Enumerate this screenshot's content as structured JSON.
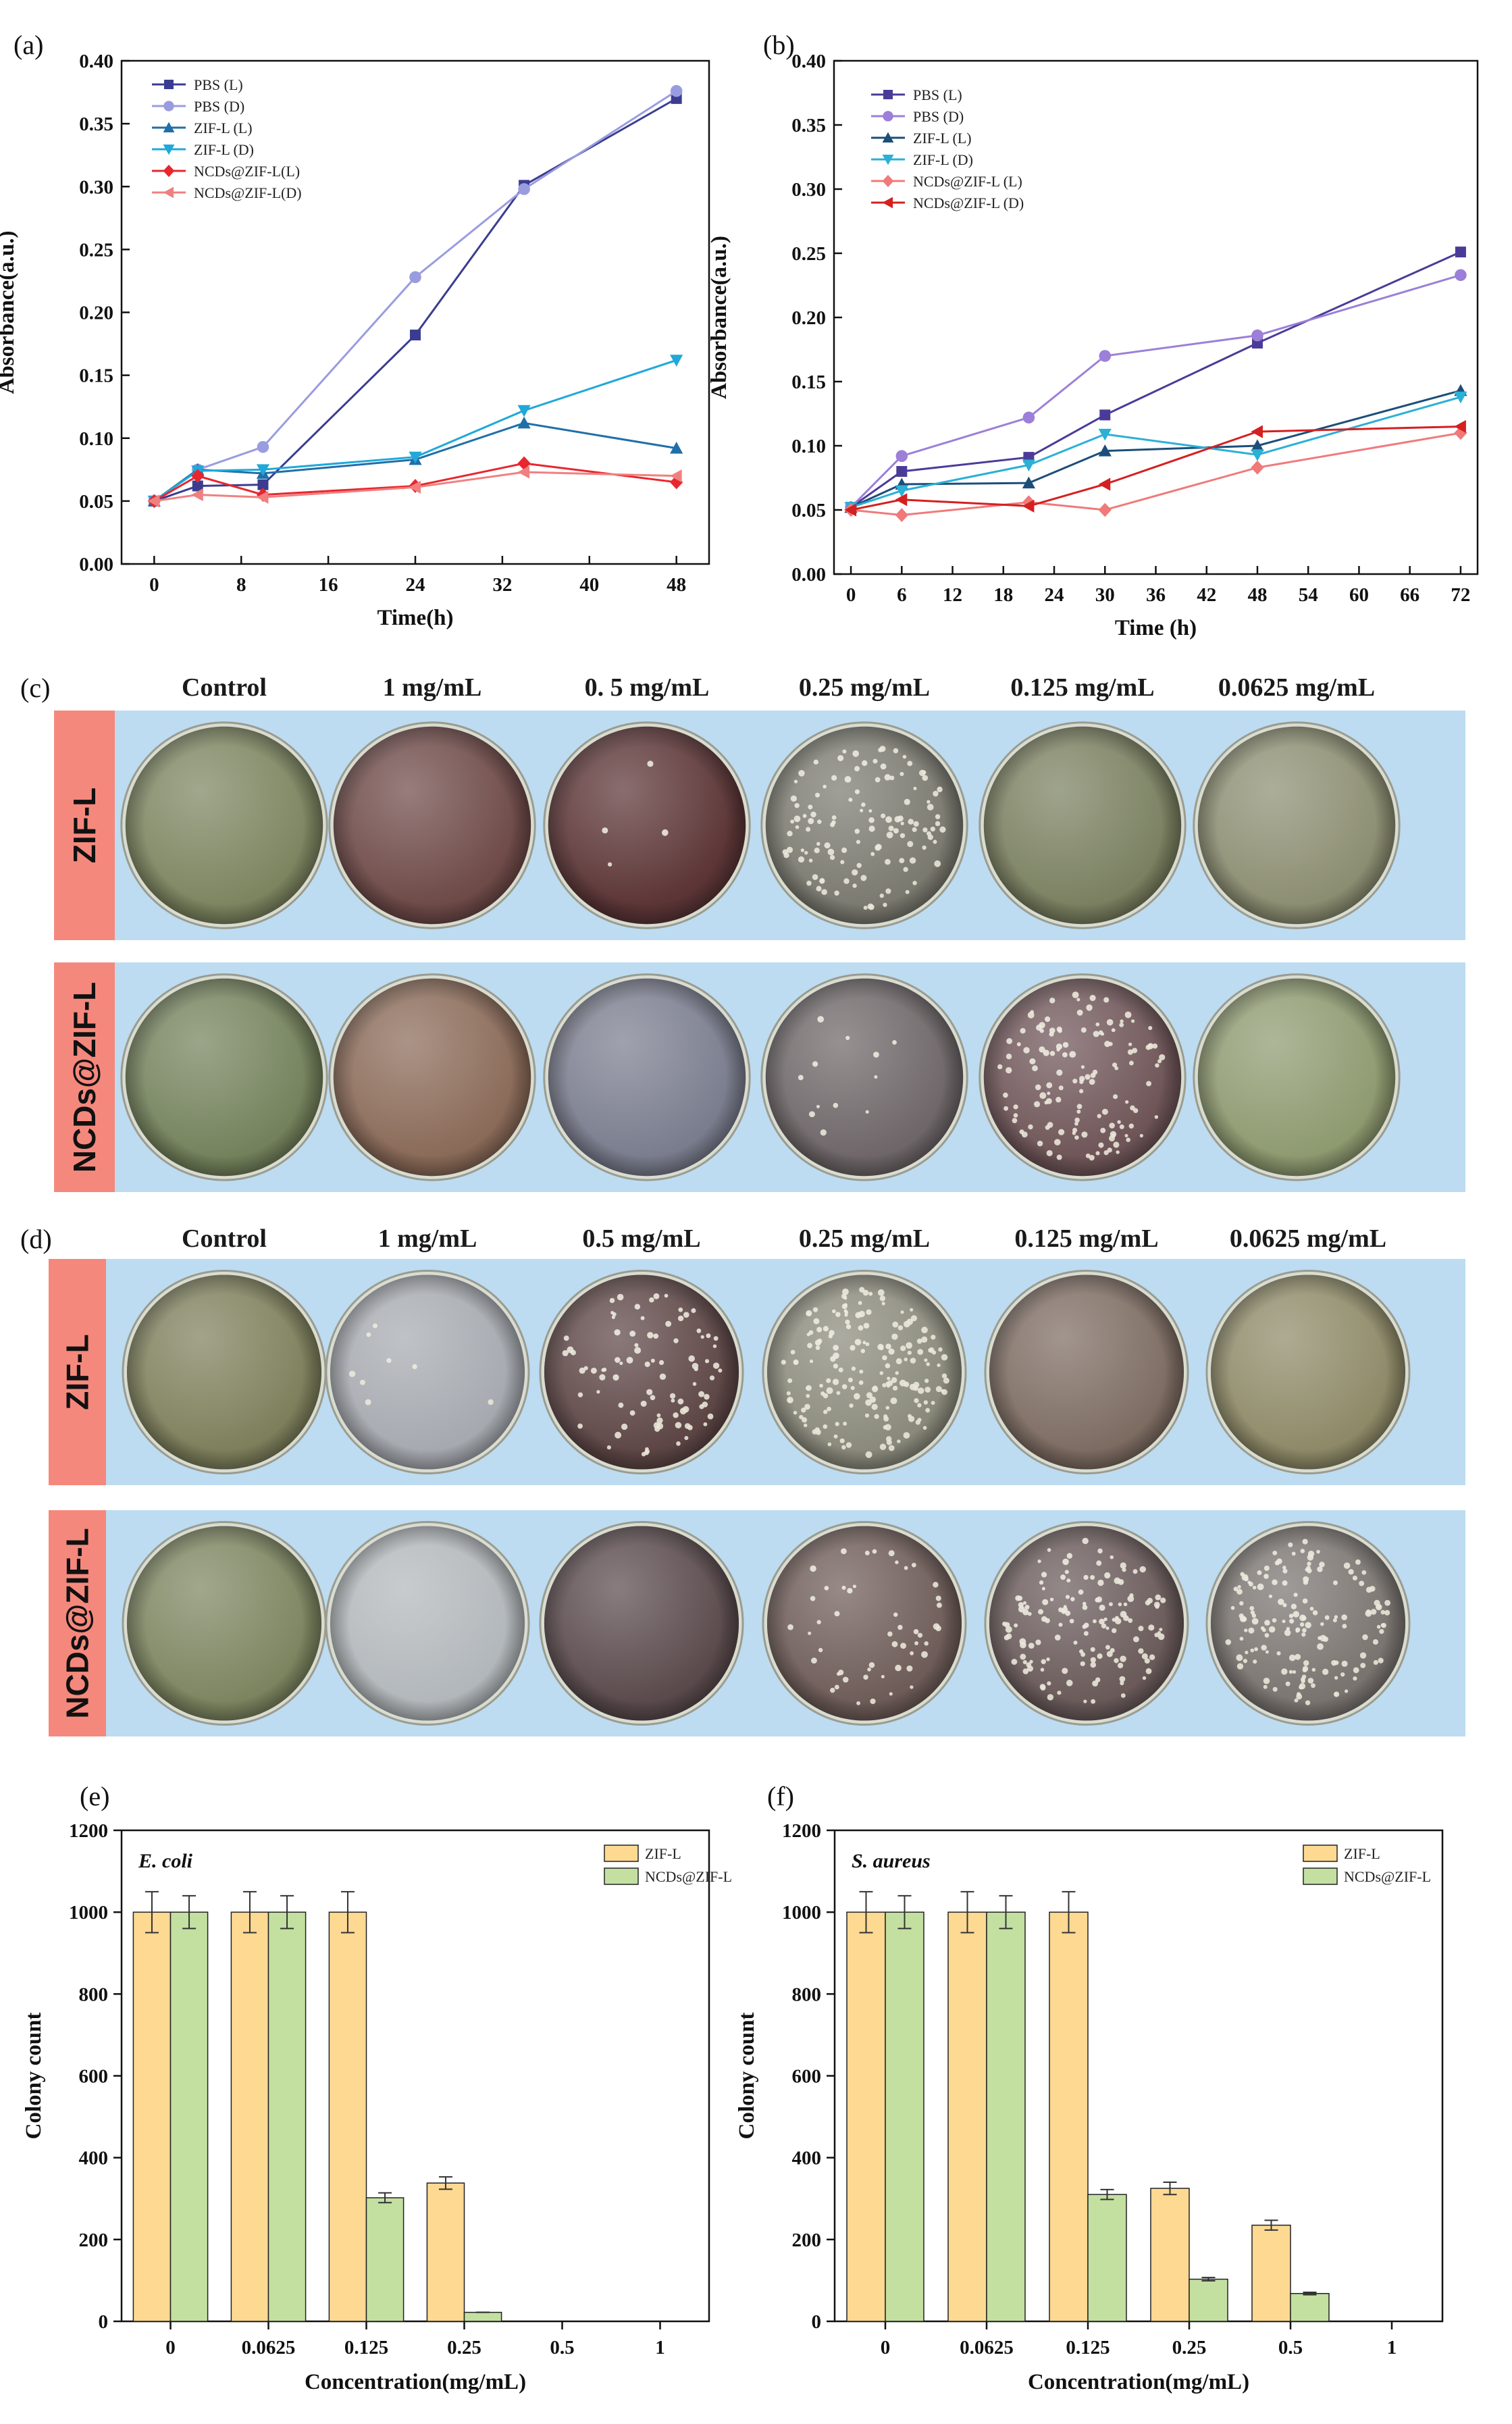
{
  "panel_labels": {
    "a": "(a)",
    "b": "(b)",
    "c": "(c)",
    "d": "(d)",
    "e": "(e)",
    "f": "(f)"
  },
  "chart_data": [
    {
      "id": "a",
      "type": "line",
      "xlabel": "Time(h)",
      "ylabel": "Absorbance(a.u.)",
      "xlim": [
        -3,
        51
      ],
      "ylim": [
        0,
        0.4
      ],
      "xticks": [
        0,
        8,
        16,
        24,
        32,
        40,
        48
      ],
      "yticks": [
        0.0,
        0.05,
        0.1,
        0.15,
        0.2,
        0.25,
        0.3,
        0.35,
        0.4
      ],
      "legend_position": "top-left",
      "series": [
        {
          "name": "PBS (L)",
          "color": "#3a3d8f",
          "marker": "square",
          "x": [
            0,
            4,
            10,
            24,
            34,
            48
          ],
          "y": [
            0.05,
            0.062,
            0.063,
            0.182,
            0.301,
            0.37
          ]
        },
        {
          "name": "PBS (D)",
          "color": "#9a9ce0",
          "marker": "circle",
          "x": [
            0,
            4,
            10,
            24,
            34,
            48
          ],
          "y": [
            0.05,
            0.075,
            0.093,
            0.228,
            0.298,
            0.376
          ]
        },
        {
          "name": "ZIF-L (L)",
          "color": "#1f6fa8",
          "marker": "triangle-up",
          "x": [
            0,
            4,
            10,
            24,
            34,
            48
          ],
          "y": [
            0.05,
            0.075,
            0.072,
            0.083,
            0.112,
            0.092
          ]
        },
        {
          "name": "ZIF-L (D)",
          "color": "#20a8d8",
          "marker": "triangle-down",
          "x": [
            0,
            4,
            10,
            24,
            34,
            48
          ],
          "y": [
            0.05,
            0.074,
            0.075,
            0.085,
            0.122,
            0.162
          ]
        },
        {
          "name": "NCDs@ZIF-L(L)",
          "color": "#e8262e",
          "marker": "diamond",
          "x": [
            0,
            4,
            10,
            24,
            34,
            48
          ],
          "y": [
            0.05,
            0.07,
            0.055,
            0.062,
            0.08,
            0.065
          ]
        },
        {
          "name": "NCDs@ZIF-L(D)",
          "color": "#f08080",
          "marker": "triangle-left",
          "x": [
            0,
            4,
            10,
            24,
            34,
            48
          ],
          "y": [
            0.05,
            0.055,
            0.053,
            0.061,
            0.073,
            0.07
          ]
        }
      ]
    },
    {
      "id": "b",
      "type": "line",
      "xlabel": "Time (h)",
      "ylabel": "Absorbance(a.u.)",
      "xlim": [
        -2,
        74
      ],
      "ylim": [
        0,
        0.4
      ],
      "xticks": [
        0,
        6,
        12,
        18,
        24,
        30,
        36,
        42,
        48,
        54,
        60,
        66,
        72
      ],
      "yticks": [
        0.0,
        0.05,
        0.1,
        0.15,
        0.2,
        0.25,
        0.3,
        0.35,
        0.4
      ],
      "legend_position": "top-left",
      "series": [
        {
          "name": "PBS (L)",
          "color": "#4b3b99",
          "marker": "square",
          "x": [
            0,
            6,
            21,
            30,
            48,
            72
          ],
          "y": [
            0.052,
            0.08,
            0.091,
            0.124,
            0.18,
            0.251
          ]
        },
        {
          "name": "PBS (D)",
          "color": "#9c7fd8",
          "marker": "circle",
          "x": [
            0,
            6,
            21,
            30,
            48,
            72
          ],
          "y": [
            0.052,
            0.092,
            0.122,
            0.17,
            0.186,
            0.233
          ]
        },
        {
          "name": "ZIF-L (L)",
          "color": "#1d4e79",
          "marker": "triangle-up",
          "x": [
            0,
            6,
            21,
            30,
            48,
            72
          ],
          "y": [
            0.052,
            0.07,
            0.071,
            0.096,
            0.1,
            0.143
          ]
        },
        {
          "name": "ZIF-L (D)",
          "color": "#2bb0d6",
          "marker": "triangle-down",
          "x": [
            0,
            6,
            21,
            30,
            48,
            72
          ],
          "y": [
            0.052,
            0.065,
            0.085,
            0.109,
            0.093,
            0.138
          ]
        },
        {
          "name": "NCDs@ZIF-L (L)",
          "color": "#f07a7a",
          "marker": "diamond",
          "x": [
            0,
            6,
            21,
            30,
            48,
            72
          ],
          "y": [
            0.05,
            0.046,
            0.056,
            0.05,
            0.083,
            0.11
          ]
        },
        {
          "name": "NCDs@ZIF-L (D)",
          "color": "#d42020",
          "marker": "triangle-left",
          "x": [
            0,
            6,
            21,
            30,
            48,
            72
          ],
          "y": [
            0.05,
            0.058,
            0.053,
            0.07,
            0.111,
            0.115
          ]
        }
      ]
    },
    {
      "id": "e",
      "type": "bar",
      "annotation": "E. coli",
      "xlabel": "Concentration(mg/mL)",
      "ylabel": "Colony count",
      "ylim": [
        0,
        1200
      ],
      "yticks": [
        0,
        200,
        400,
        600,
        800,
        1000,
        1200
      ],
      "categories": [
        "0",
        "0.0625",
        "0.125",
        "0.25",
        "0.5",
        "1"
      ],
      "legend_position": "top-right",
      "series": [
        {
          "name": "ZIF-L",
          "color": "#fdd992",
          "values": [
            1000,
            1000,
            1000,
            338,
            0,
            0
          ],
          "errors": [
            50,
            50,
            50,
            15,
            0,
            0
          ]
        },
        {
          "name": "NCDs@ZIF-L",
          "color": "#c3e0a1",
          "values": [
            1000,
            1000,
            302,
            22,
            0,
            0
          ],
          "errors": [
            40,
            40,
            12,
            0,
            0,
            0
          ]
        }
      ]
    },
    {
      "id": "f",
      "type": "bar",
      "annotation": "S. aureus",
      "xlabel": "Concentration(mg/mL)",
      "ylabel": "Colony count",
      "ylim": [
        0,
        1200
      ],
      "yticks": [
        0,
        200,
        400,
        600,
        800,
        1000,
        1200
      ],
      "categories": [
        "0",
        "0.0625",
        "0.125",
        "0.25",
        "0.5",
        "1"
      ],
      "legend_position": "top-right",
      "series": [
        {
          "name": "ZIF-L",
          "color": "#fdd992",
          "values": [
            1000,
            1000,
            1000,
            325,
            235,
            0
          ],
          "errors": [
            50,
            50,
            50,
            15,
            12,
            0
          ]
        },
        {
          "name": "NCDs@ZIF-L",
          "color": "#c3e0a1",
          "values": [
            1000,
            1000,
            310,
            103,
            68,
            0
          ],
          "errors": [
            40,
            40,
            12,
            4,
            3,
            0
          ]
        }
      ]
    }
  ],
  "plates": {
    "c": {
      "concentrations": [
        "Control",
        "1 mg/mL",
        "0. 5 mg/mL",
        "0.25 mg/mL",
        "0.125 mg/mL",
        "0.0625 mg/mL"
      ],
      "rows": [
        {
          "label": "ZIF-L",
          "tints": [
            "#7d8560",
            "#6e4a48",
            "#5c3536",
            "#7a7a70",
            "#7a8060",
            "#8c8e72"
          ],
          "colonies": [
            0,
            0,
            4,
            120,
            0,
            0
          ]
        },
        {
          "label": "NCDs@ZIF-L",
          "tints": [
            "#74825c",
            "#8a6a58",
            "#7a7d8e",
            "#6e6668",
            "#6f5558",
            "#8e9a70"
          ],
          "colonies": [
            0,
            0,
            0,
            12,
            130,
            0
          ]
        }
      ]
    },
    "d": {
      "concentrations": [
        "Control",
        "1 mg/mL",
        "0.5 mg/mL",
        "0.25 mg/mL",
        "0.125 mg/mL",
        "0.0625 mg/mL"
      ],
      "rows": [
        {
          "label": "ZIF-L",
          "tints": [
            "#7e805c",
            "#a6aab0",
            "#5e4646",
            "#8a8a7c",
            "#7d6c62",
            "#8e8a68"
          ],
          "colonies": [
            0,
            8,
            90,
            180,
            0,
            0
          ]
        },
        {
          "label": "NCDs@ZIF-L",
          "tints": [
            "#7d8560",
            "#b2b7bb",
            "#5a4a4c",
            "#6e5c58",
            "#6a5a5a",
            "#7a7470"
          ],
          "colonies": [
            0,
            0,
            0,
            50,
            140,
            160
          ]
        }
      ]
    }
  },
  "colors": {
    "row_label_bg": "#f5887c",
    "plate_row_bg": "#bddcf2"
  }
}
